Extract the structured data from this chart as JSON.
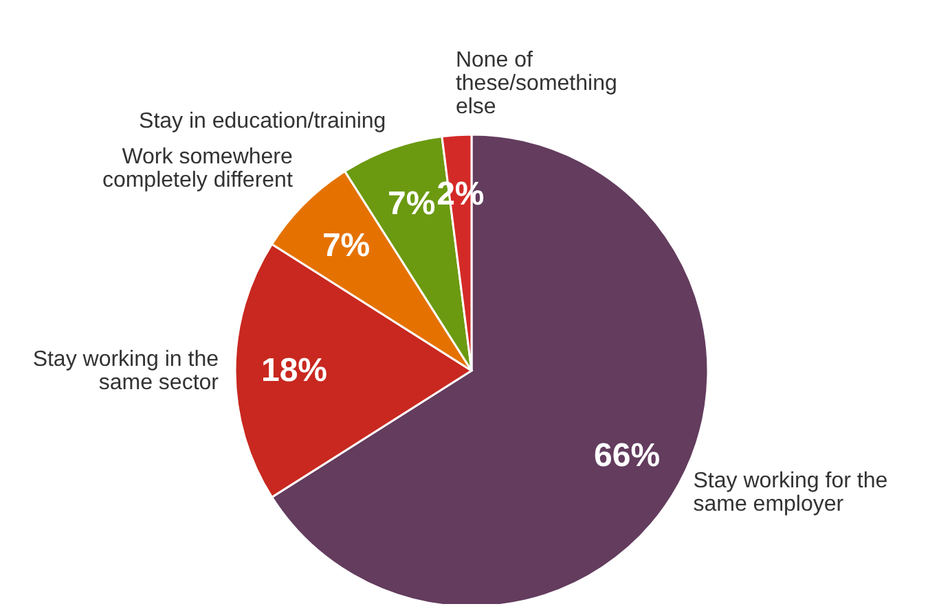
{
  "chart_data": {
    "type": "pie",
    "categories": [
      "Stay working for the\nsame employer",
      "Stay working in the\nsame sector",
      "Work somewhere\ncompletely different",
      "Stay in education/training",
      "None of\nthese/something\nelse"
    ],
    "values": [
      66,
      18,
      7,
      7,
      2
    ],
    "colors": [
      "#633c5e",
      "#c8281f",
      "#e57200",
      "#6b9a10",
      "#d42a27"
    ],
    "value_labels": [
      "66%",
      "18%",
      "7%",
      "7%",
      "2%"
    ]
  }
}
